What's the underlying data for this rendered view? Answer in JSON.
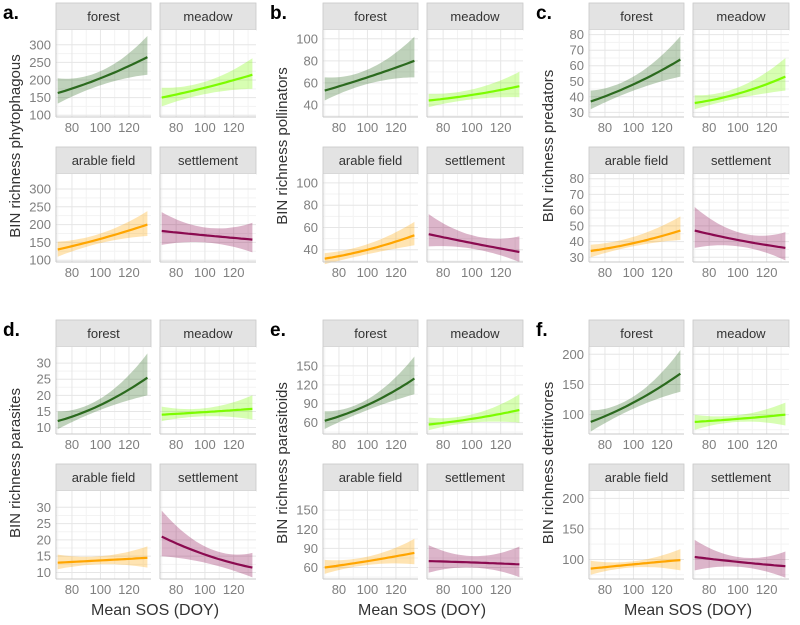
{
  "chart_data": {
    "type": "line",
    "facet_labels": [
      "forest",
      "meadow",
      "arable field",
      "settlement"
    ],
    "colors": {
      "forest": "#2b6a1e",
      "meadow": "#7cfc00",
      "arable field": "#ffa500",
      "settlement": "#8b0a50"
    },
    "x_values_sampled": [
      70,
      100,
      133
    ],
    "xlim": [
      68.8,
      135.5
    ],
    "xticks": [
      80,
      100,
      120
    ],
    "xlabel": "Mean SOS (DOY)",
    "panels": [
      {
        "label": "a.",
        "ylabel": "BIN richness phytophagous",
        "ylim": [
          95,
          342
        ],
        "yticks": [
          100,
          150,
          200,
          250,
          300
        ],
        "series": [
          {
            "name": "forest",
            "fit": [
              163,
              205,
              265
            ],
            "lower": [
              133,
              185,
              215
            ],
            "upper": [
              205,
              225,
              325
            ]
          },
          {
            "name": "meadow",
            "fit": [
              150,
              178,
              215
            ],
            "lower": [
              125,
              160,
              175
            ],
            "upper": [
              178,
              195,
              262
            ]
          },
          {
            "name": "arable field",
            "fit": [
              130,
              160,
              200
            ],
            "lower": [
              110,
              148,
              168
            ],
            "upper": [
              152,
              175,
              238
            ]
          },
          {
            "name": "settlement",
            "fit": [
              182,
              170,
              158
            ],
            "lower": [
              143,
              150,
              122
            ],
            "upper": [
              235,
              192,
              205
            ]
          }
        ]
      },
      {
        "label": "b.",
        "ylabel": "BIN richness pollinators",
        "ylim": [
          29,
          108
        ],
        "yticks": [
          40,
          60,
          80,
          100
        ],
        "series": [
          {
            "name": "forest",
            "fit": [
              53,
              65,
              80
            ],
            "lower": [
              44,
              59,
              65
            ],
            "upper": [
              65,
              72,
              102
            ]
          },
          {
            "name": "meadow",
            "fit": [
              44,
              49,
              57
            ],
            "lower": [
              38,
              45,
              47
            ],
            "upper": [
              50,
              54,
              70
            ]
          },
          {
            "name": "arable field",
            "fit": [
              32,
              40,
              53
            ],
            "lower": [
              27,
              36,
              44
            ],
            "upper": [
              37,
              45,
              65
            ]
          },
          {
            "name": "settlement",
            "fit": [
              54,
              46,
              38
            ],
            "lower": [
              43,
              41,
              29
            ],
            "upper": [
              72,
              53,
              52
            ]
          }
        ]
      },
      {
        "label": "c.",
        "ylabel": "BIN richness predators",
        "ylim": [
          27,
          83
        ],
        "yticks": [
          30,
          40,
          50,
          60,
          70,
          80
        ],
        "series": [
          {
            "name": "forest",
            "fit": [
              37,
              48,
              64
            ],
            "lower": [
              32,
              44,
              53
            ],
            "upper": [
              44,
              53,
              79
            ]
          },
          {
            "name": "meadow",
            "fit": [
              36,
              42,
              53
            ],
            "lower": [
              32,
              39,
              44
            ],
            "upper": [
              41,
              46,
              65
            ]
          },
          {
            "name": "arable field",
            "fit": [
              34,
              39,
              47
            ],
            "lower": [
              30,
              37,
              41
            ],
            "upper": [
              38,
              43,
              56
            ]
          },
          {
            "name": "settlement",
            "fit": [
              47,
              41,
              36
            ],
            "lower": [
              36,
              37,
              28
            ],
            "upper": [
              62,
              46,
              46
            ]
          }
        ]
      },
      {
        "label": "d.",
        "ylabel": "BIN richness parasites",
        "ylim": [
          8,
          35
        ],
        "yticks": [
          10,
          15,
          20,
          25,
          30
        ],
        "series": [
          {
            "name": "forest",
            "fit": [
              12,
              17,
              25.5
            ],
            "lower": [
              9.5,
              15.5,
              20
            ],
            "upper": [
              15,
              19,
              33
            ]
          },
          {
            "name": "meadow",
            "fit": [
              14,
              14.8,
              15.8
            ],
            "lower": [
              12,
              13.5,
              12.5
            ],
            "upper": [
              16.5,
              16,
              20
            ]
          },
          {
            "name": "arable field",
            "fit": [
              13,
              13.7,
              14.5
            ],
            "lower": [
              11,
              12.5,
              11.5
            ],
            "upper": [
              15.5,
              15,
              18
            ]
          },
          {
            "name": "settlement",
            "fit": [
              21,
              15.5,
              11.5
            ],
            "lower": [
              15,
              13,
              8.5
            ],
            "upper": [
              29,
              18,
              16
            ]
          }
        ]
      },
      {
        "label": "e.",
        "ylabel": "BIN richness parasitoids",
        "ylim": [
          42,
          180
        ],
        "yticks": [
          60,
          90,
          120,
          150
        ],
        "series": [
          {
            "name": "forest",
            "fit": [
              63,
              88,
              130
            ],
            "lower": [
              50,
              80,
              105
            ],
            "upper": [
              78,
              97,
              165
            ]
          },
          {
            "name": "meadow",
            "fit": [
              57,
              66,
              80
            ],
            "lower": [
              48,
              60,
              60
            ],
            "upper": [
              68,
              73,
              105
            ]
          },
          {
            "name": "arable field",
            "fit": [
              60,
              70,
              83
            ],
            "lower": [
              50,
              64,
              65
            ],
            "upper": [
              72,
              77,
              105
            ]
          },
          {
            "name": "settlement",
            "fit": [
              70,
              68,
              65
            ],
            "lower": [
              52,
              60,
              45
            ],
            "upper": [
              95,
              78,
              93
            ]
          }
        ]
      },
      {
        "label": "f.",
        "ylabel": "BIN richness detritivores",
        "ylim": [
          68,
          212
        ],
        "yticks": [
          100,
          150,
          200
        ],
        "series": [
          {
            "name": "forest",
            "fit": [
              88,
              120,
              168
            ],
            "lower": [
              72,
              110,
              138
            ],
            "upper": [
              107,
              130,
              207
            ]
          },
          {
            "name": "meadow",
            "fit": [
              88,
              93,
              100
            ],
            "lower": [
              75,
              88,
              82
            ],
            "upper": [
              100,
              99,
              120
            ]
          },
          {
            "name": "arable field",
            "fit": [
              85,
              92,
              99
            ],
            "lower": [
              75,
              87,
              82
            ],
            "upper": [
              98,
              97,
              117
            ]
          },
          {
            "name": "settlement",
            "fit": [
              104,
              96,
              89
            ],
            "lower": [
              82,
              88,
              70
            ],
            "upper": [
              132,
              104,
              113
            ]
          }
        ]
      }
    ]
  }
}
